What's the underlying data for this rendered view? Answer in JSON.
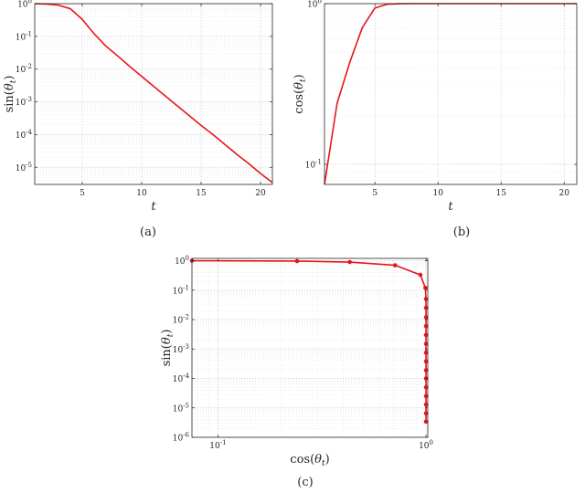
{
  "chart_data": [
    {
      "type": "line",
      "caption": "(a)",
      "xlabel": "t",
      "ylabel": "sin(θ_t)",
      "x_scale": "linear",
      "y_scale": "log",
      "xlim": [
        1,
        21
      ],
      "ylim": [
        3e-06,
        1
      ],
      "x_ticks": [
        5,
        10,
        15,
        20
      ],
      "x_tick_labels": [
        "5",
        "10",
        "15",
        "20"
      ],
      "y_ticks": [
        1e-05,
        0.0001,
        0.001,
        0.01,
        0.1,
        1
      ],
      "y_tick_labels": [
        {
          "base": "10",
          "exp": "-5"
        },
        {
          "base": "10",
          "exp": "-4"
        },
        {
          "base": "10",
          "exp": "-3"
        },
        {
          "base": "10",
          "exp": "-2"
        },
        {
          "base": "10",
          "exp": "-1"
        },
        {
          "base": "10",
          "exp": "0"
        }
      ],
      "grid": true,
      "line_color": "#e8141c",
      "markers": false,
      "series": [
        {
          "x": [
            1,
            2,
            3,
            4,
            5,
            6,
            7,
            8,
            9,
            10,
            11,
            12,
            13,
            14,
            15,
            16,
            17,
            18,
            19,
            20,
            21
          ],
          "y": [
            1.0,
            0.97,
            0.9,
            0.7,
            0.33,
            0.12,
            0.05,
            0.025,
            0.012,
            0.006,
            0.003,
            0.0015,
            0.00075,
            0.00038,
            0.00019,
            0.0001,
            5e-05,
            2.5e-05,
            1.3e-05,
            6.5e-06,
            3.4e-06
          ]
        }
      ]
    },
    {
      "type": "line",
      "caption": "(b)",
      "xlabel": "t",
      "ylabel": "cos(θ_t)",
      "x_scale": "linear",
      "y_scale": "log",
      "xlim": [
        1,
        21
      ],
      "ylim": [
        0.075,
        1
      ],
      "x_ticks": [
        5,
        10,
        15,
        20
      ],
      "x_tick_labels": [
        "5",
        "10",
        "15",
        "20"
      ],
      "y_ticks": [
        0.1,
        1
      ],
      "y_tick_labels": [
        {
          "base": "10",
          "exp": "-1"
        },
        {
          "base": "10",
          "exp": "0"
        }
      ],
      "grid": true,
      "line_color": "#e8141c",
      "markers": false,
      "series": [
        {
          "x": [
            1,
            2,
            3,
            4,
            5,
            6,
            7,
            8,
            9,
            10,
            11,
            12,
            13,
            14,
            15,
            16,
            17,
            18,
            19,
            20,
            21
          ],
          "y": [
            0.075,
            0.24,
            0.43,
            0.71,
            0.94,
            0.993,
            0.9997,
            1,
            1,
            1,
            1,
            1,
            1,
            1,
            1,
            1,
            1,
            1,
            1,
            1,
            1
          ]
        }
      ]
    },
    {
      "type": "line",
      "caption": "(c)",
      "xlabel": "cos(θ_t)",
      "ylabel": "sin(θ_t)",
      "x_scale": "log",
      "y_scale": "log",
      "xlim": [
        0.075,
        1.02
      ],
      "ylim": [
        1e-06,
        1.2
      ],
      "x_ticks": [
        0.1,
        1
      ],
      "x_tick_labels": [
        {
          "base": "10",
          "exp": "-1"
        },
        {
          "base": "10",
          "exp": "0"
        }
      ],
      "y_ticks": [
        1e-06,
        1e-05,
        0.0001,
        0.001,
        0.01,
        0.1,
        1
      ],
      "y_tick_labels": [
        {
          "base": "10",
          "exp": "-6"
        },
        {
          "base": "10",
          "exp": "-5"
        },
        {
          "base": "10",
          "exp": "-4"
        },
        {
          "base": "10",
          "exp": "-3"
        },
        {
          "base": "10",
          "exp": "-2"
        },
        {
          "base": "10",
          "exp": "-1"
        },
        {
          "base": "10",
          "exp": "0"
        }
      ],
      "grid": true,
      "line_color": "#e8141c",
      "markers": true,
      "series": [
        {
          "x": [
            0.075,
            0.24,
            0.43,
            0.71,
            0.94,
            0.993,
            0.9997,
            1,
            1,
            1,
            1,
            1,
            1,
            1,
            1,
            1,
            1,
            1,
            1,
            1,
            1
          ],
          "y": [
            1.0,
            0.97,
            0.9,
            0.7,
            0.33,
            0.12,
            0.05,
            0.025,
            0.012,
            0.006,
            0.003,
            0.0015,
            0.00075,
            0.00038,
            0.00019,
            0.0001,
            5e-05,
            2.5e-05,
            1.3e-05,
            6.5e-06,
            3.4e-06
          ]
        }
      ]
    }
  ]
}
